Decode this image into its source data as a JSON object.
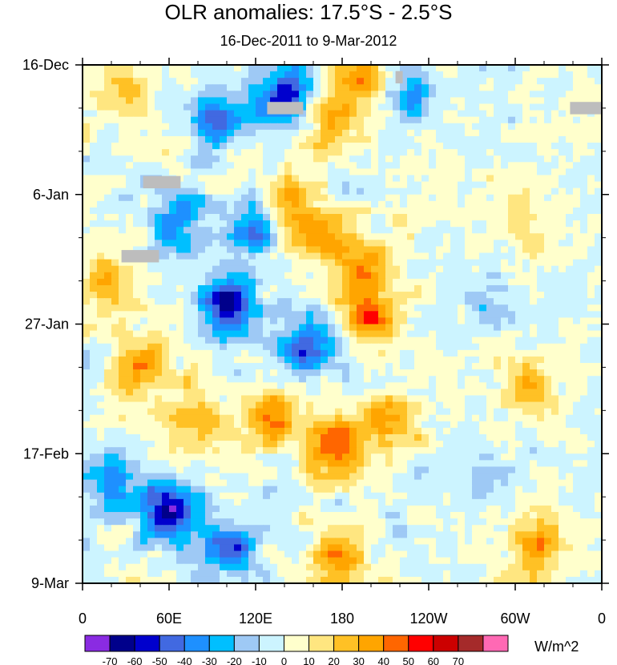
{
  "chart_data": {
    "type": "heatmap",
    "title": "OLR anomalies: 17.5°S - 2.5°S",
    "subtitle": "16-Dec-2011 to 9-Mar-2012",
    "xlabel": "",
    "ylabel": "",
    "x_ticks": [
      {
        "lon": 0,
        "label": "0"
      },
      {
        "lon": 60,
        "label": "60E"
      },
      {
        "lon": 120,
        "label": "120E"
      },
      {
        "lon": 180,
        "label": "180"
      },
      {
        "lon": 240,
        "label": "120W"
      },
      {
        "lon": 300,
        "label": "60W"
      },
      {
        "lon": 360,
        "label": "0"
      }
    ],
    "y_ticks": [
      {
        "day": 0,
        "label": "16-Dec"
      },
      {
        "day": 21,
        "label": "6-Jan"
      },
      {
        "day": 42,
        "label": "27-Jan"
      },
      {
        "day": 63,
        "label": "17-Feb"
      },
      {
        "day": 84,
        "label": "9-Mar"
      }
    ],
    "xlim": [
      0,
      360
    ],
    "ylim_days": [
      0,
      84
    ],
    "colorbar": {
      "units": "W/m^2",
      "levels": [
        -70,
        -60,
        -50,
        -40,
        -30,
        -20,
        -10,
        0,
        10,
        20,
        30,
        40,
        50,
        60,
        70
      ],
      "colors": [
        "#8a2be2",
        "#00008b",
        "#0000cd",
        "#4169e1",
        "#1e90ff",
        "#00bfff",
        "#9ec9f5",
        "#ccf4ff",
        "#ffffcc",
        "#ffe680",
        "#ffc125",
        "#ffa500",
        "#ff6600",
        "#ff0000",
        "#cc0000",
        "#a52a2a",
        "#ff69b4"
      ]
    },
    "features": [
      {
        "lon": 140,
        "day": 5,
        "value": -60
      },
      {
        "lon": 95,
        "day": 9,
        "value": -45
      },
      {
        "lon": 190,
        "day": 2,
        "value": 45
      },
      {
        "lon": 230,
        "day": 5,
        "value": -30
      },
      {
        "lon": 65,
        "day": 25,
        "value": -40
      },
      {
        "lon": 120,
        "day": 26,
        "value": -50
      },
      {
        "lon": 140,
        "day": 23,
        "value": 45
      },
      {
        "lon": 165,
        "day": 28,
        "value": 40
      },
      {
        "lon": 195,
        "day": 33,
        "value": 35
      },
      {
        "lon": 100,
        "day": 39,
        "value": -70
      },
      {
        "lon": 155,
        "day": 46,
        "value": -55
      },
      {
        "lon": 200,
        "day": 41,
        "value": 45
      },
      {
        "lon": 40,
        "day": 49,
        "value": 45
      },
      {
        "lon": 130,
        "day": 57,
        "value": 45
      },
      {
        "lon": 175,
        "day": 62,
        "value": 55
      },
      {
        "lon": 210,
        "day": 58,
        "value": 35
      },
      {
        "lon": 60,
        "day": 72,
        "value": -65
      },
      {
        "lon": 100,
        "day": 78,
        "value": -55
      },
      {
        "lon": 175,
        "day": 80,
        "value": 40
      },
      {
        "lon": 315,
        "day": 52,
        "value": 35
      },
      {
        "lon": 320,
        "day": 78,
        "value": 45
      },
      {
        "lon": 280,
        "day": 38,
        "value": -25
      },
      {
        "lon": 270,
        "day": 66,
        "value": -25
      },
      {
        "lon": 250,
        "day": 20,
        "value": 10
      },
      {
        "lon": 30,
        "day": 5,
        "value": 25
      },
      {
        "lon": 15,
        "day": 35,
        "value": 30
      },
      {
        "lon": 170,
        "day": 10,
        "value": 30
      },
      {
        "lon": 75,
        "day": 58,
        "value": 35
      },
      {
        "lon": 20,
        "day": 68,
        "value": -40
      },
      {
        "lon": 300,
        "day": 25,
        "value": 20
      }
    ],
    "missing": [
      {
        "lon0": 42,
        "lon1": 68,
        "day0": 18,
        "day1": 20
      },
      {
        "lon0": 27,
        "lon1": 53,
        "day0": 30,
        "day1": 32
      },
      {
        "lon0": 128,
        "lon1": 153,
        "day0": 6,
        "day1": 8
      },
      {
        "lon0": 217,
        "lon1": 222,
        "day0": 1,
        "day1": 3
      },
      {
        "lon0": 338,
        "lon1": 363,
        "day0": 6,
        "day1": 8
      }
    ]
  }
}
